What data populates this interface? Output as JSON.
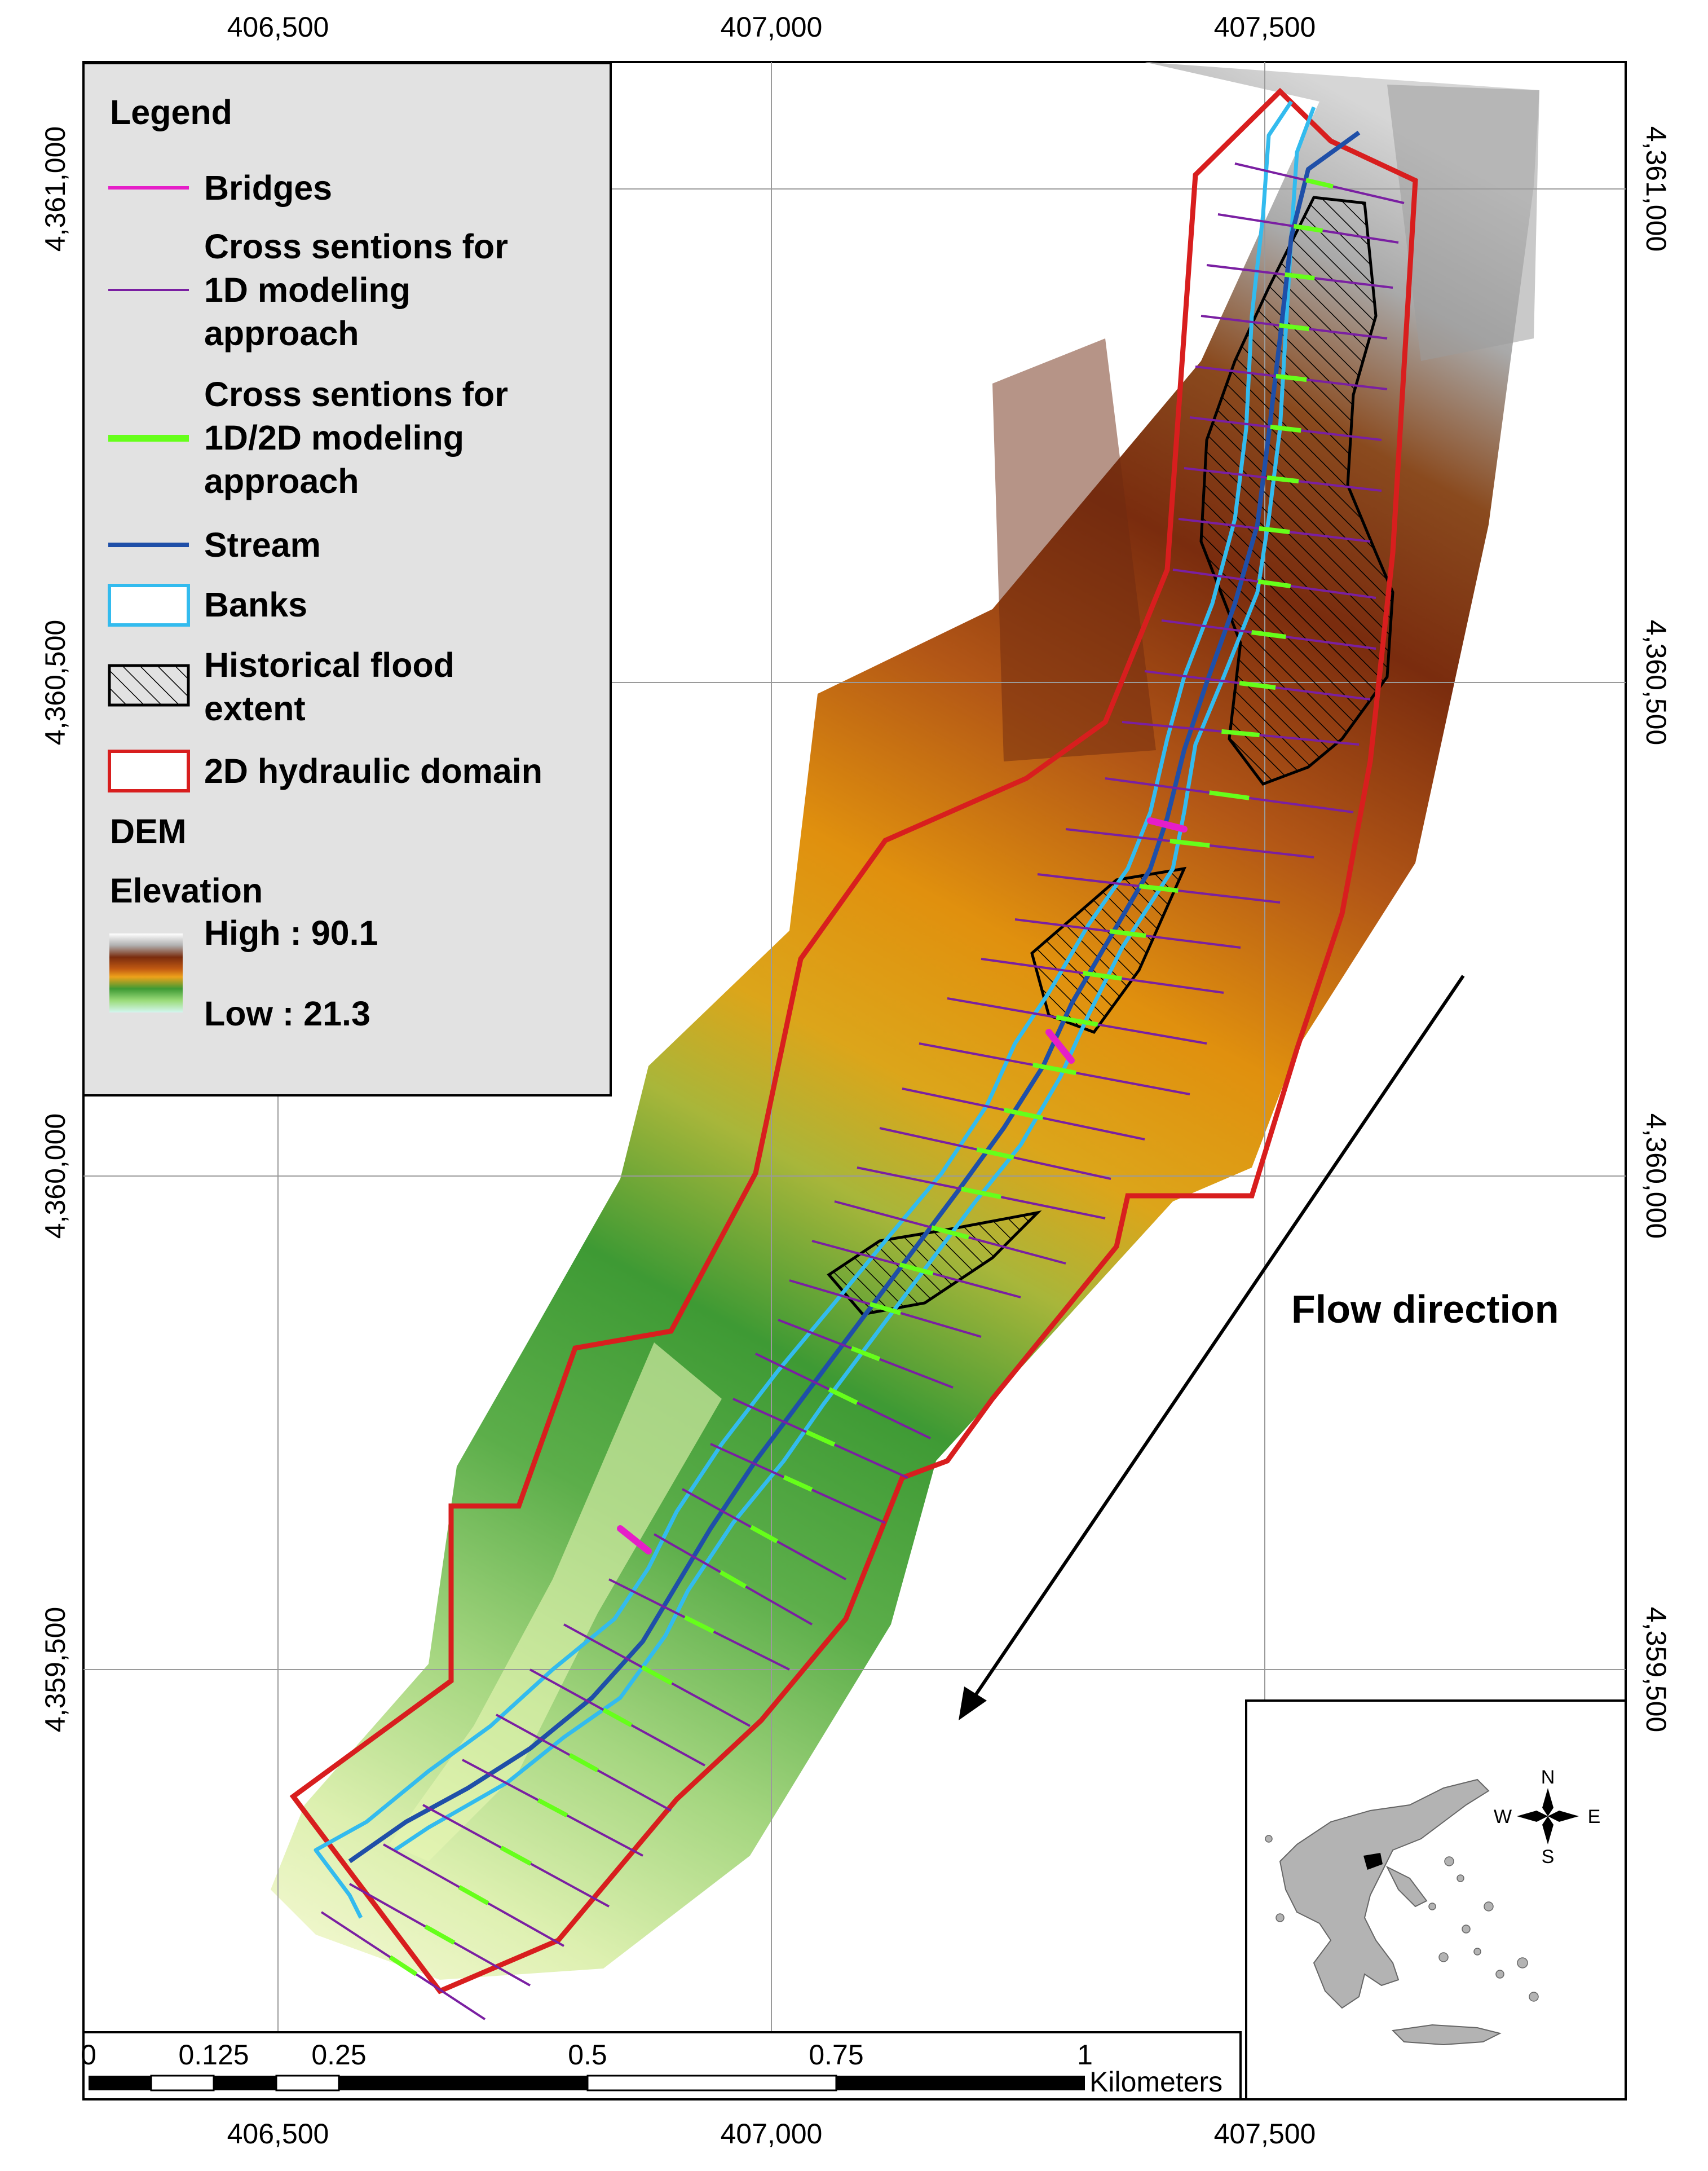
{
  "map": {
    "x_ticks": [
      "406,500",
      "407,000",
      "407,500"
    ],
    "y_ticks": [
      "4,361,000",
      "4,360,500",
      "4,360,000",
      "4,359,500"
    ]
  },
  "legend": {
    "title": "Legend",
    "items": [
      {
        "type": "line",
        "color": "#e61ec8",
        "label_lines": [
          "Bridges"
        ]
      },
      {
        "type": "line",
        "color": "#7a1fa2",
        "label_lines": [
          "Cross sentions for",
          "1D modeling",
          "approach"
        ]
      },
      {
        "type": "line",
        "color": "#66ff1a",
        "label_lines": [
          "Cross sentions for",
          "1D/2D modeling",
          "approach"
        ]
      },
      {
        "type": "line",
        "color": "#1f4fa8",
        "label_lines": [
          "Stream"
        ]
      },
      {
        "type": "box",
        "color": "#33bbee",
        "label_lines": [
          "Banks"
        ]
      },
      {
        "type": "hatch",
        "color": "#000000",
        "label_lines": [
          "Historical flood",
          "extent"
        ]
      },
      {
        "type": "box",
        "color": "#d81e1e",
        "label_lines": [
          "2D hydraulic domain"
        ]
      }
    ],
    "dem_title": "DEM",
    "elevation_title": "Elevation",
    "high_label": "High : 90.1",
    "low_label": "Low : 21.3"
  },
  "flow_label": "Flow direction",
  "scale_bar": {
    "labels": [
      "0",
      "0.125",
      "0.25",
      "0.5",
      "0.75",
      "1"
    ],
    "unit": "Kilometers"
  },
  "inset": {
    "compass": {
      "n": "N",
      "s": "S",
      "e": "E",
      "w": "W"
    }
  },
  "colors": {
    "domain": "#d81e1e",
    "banks": "#33bbee",
    "stream": "#1f4fa8",
    "xs_1d": "#7a1fa2",
    "xs_2d": "#66ff1a",
    "bridge": "#e61ec8"
  }
}
